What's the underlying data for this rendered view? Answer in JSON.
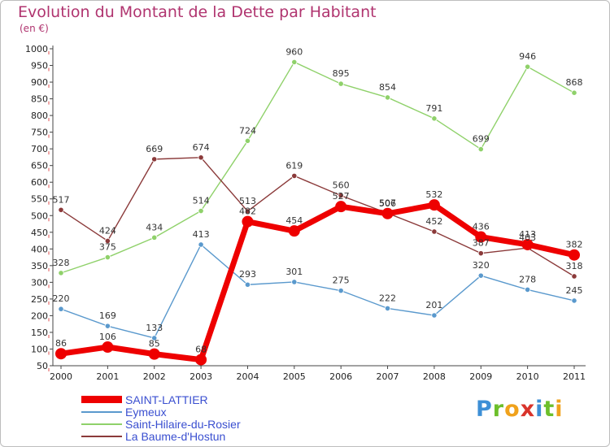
{
  "header": {
    "title": "Evolution du Montant de la Dette par Habitant",
    "unit": "(en €)"
  },
  "logo": {
    "letters": [
      "P",
      "r",
      "o",
      "x",
      "i",
      "t",
      "i"
    ],
    "colors": [
      "#3d8fd6",
      "#6cbf2b",
      "#f0a21c",
      "#d9342b",
      "#3d8fd6",
      "#6cbf2b",
      "#f0a21c"
    ]
  },
  "chart_data": {
    "type": "line",
    "title": "Evolution du Montant de la Dette par Habitant",
    "ylabel": "(en €)",
    "xlabel": "",
    "x": [
      "2000",
      "2001",
      "2002",
      "2003",
      "2004",
      "2005",
      "2006",
      "2007",
      "2008",
      "2009",
      "2010",
      "2011"
    ],
    "ylim": [
      50,
      1000
    ],
    "yticks": [
      50,
      100,
      150,
      200,
      250,
      300,
      350,
      400,
      450,
      500,
      550,
      600,
      650,
      700,
      750,
      800,
      850,
      900,
      950,
      1000
    ],
    "grid": false,
    "legend_position": "bottom-left",
    "series": [
      {
        "name": "SAINT-LATTIER",
        "color": "#ee0000",
        "values": [
          86,
          106,
          85,
          68,
          482,
          454,
          527,
          506,
          532,
          436,
          413,
          382
        ],
        "labels": [
          "86",
          "106",
          "85",
          "68",
          "482",
          "454",
          "527",
          "506",
          "532",
          "436",
          "413",
          "382"
        ]
      },
      {
        "name": "Eymeux",
        "color": "#5a99cd",
        "values": [
          220,
          169,
          133,
          413,
          293,
          301,
          275,
          222,
          201,
          320,
          278,
          245
        ],
        "labels": [
          "220",
          "169",
          "133",
          "413",
          "293",
          "301",
          "275",
          "222",
          "201",
          "320",
          "278",
          "245"
        ]
      },
      {
        "name": "Saint-Hilaire-du-Rosier",
        "color": "#8fd16a",
        "values": [
          328,
          375,
          434,
          514,
          724,
          960,
          895,
          854,
          791,
          699,
          946,
          868
        ],
        "labels": [
          "328",
          "375",
          "434",
          "514",
          "724",
          "960",
          "895",
          "854",
          "791",
          "699",
          "946",
          "868"
        ]
      },
      {
        "name": "La Baume-d'Hostun",
        "color": "#8b3a3a",
        "values": [
          517,
          424,
          669,
          674,
          513,
          619,
          560,
          507,
          452,
          387,
          403,
          318
        ],
        "labels": [
          "517",
          "424",
          "669",
          "674",
          "513",
          "619",
          "560",
          "507",
          "452",
          "387",
          "403",
          "318"
        ]
      }
    ],
    "legend": [
      "SAINT-LATTIER",
      "Eymeux",
      "Saint-Hilaire-du-Rosier",
      "La Baume-d'Hostun"
    ]
  }
}
